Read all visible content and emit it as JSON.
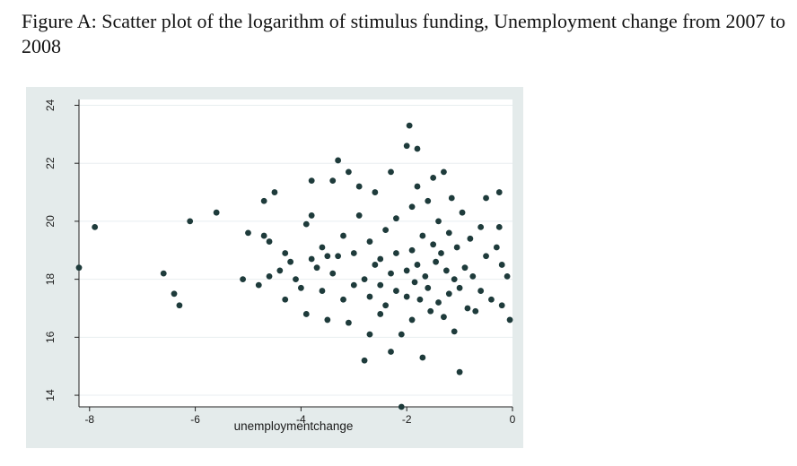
{
  "caption": "Figure A:  Scatter plot of the logarithm of stimulus funding, Unemployment change from 2007 to 2008",
  "chart_data": {
    "type": "scatter",
    "title": "",
    "xlabel": "unemploymentchange",
    "ylabel": "",
    "xlim": [
      -8.2,
      0
    ],
    "ylim": [
      13.6,
      24.2
    ],
    "x_ticks": [
      -8,
      -6,
      -4,
      -2,
      0
    ],
    "y_ticks": [
      14,
      16,
      18,
      20,
      22,
      24
    ],
    "grid": true,
    "legend": "none",
    "colors": {
      "marker": "#1e3b3b",
      "plot_bg": "#ffffff",
      "frame_bg": "#e4ebeb",
      "grid": "#e8eef0"
    },
    "points": [
      [
        -8.2,
        18.4
      ],
      [
        -7.9,
        19.8
      ],
      [
        -6.6,
        18.2
      ],
      [
        -6.4,
        17.5
      ],
      [
        -6.3,
        17.1
      ],
      [
        -6.1,
        20.0
      ],
      [
        -5.6,
        20.3
      ],
      [
        -5.1,
        18.0
      ],
      [
        -5.0,
        19.6
      ],
      [
        -4.8,
        17.8
      ],
      [
        -4.7,
        19.5
      ],
      [
        -4.7,
        20.7
      ],
      [
        -4.6,
        19.3
      ],
      [
        -4.5,
        21.0
      ],
      [
        -4.6,
        18.1
      ],
      [
        -4.4,
        18.3
      ],
      [
        -4.3,
        17.3
      ],
      [
        -4.3,
        18.9
      ],
      [
        -4.2,
        18.6
      ],
      [
        -4.1,
        18.0
      ],
      [
        -4.0,
        17.7
      ],
      [
        -3.9,
        19.9
      ],
      [
        -3.9,
        16.8
      ],
      [
        -3.8,
        18.7
      ],
      [
        -3.8,
        20.2
      ],
      [
        -3.8,
        21.4
      ],
      [
        -3.7,
        18.4
      ],
      [
        -3.6,
        17.6
      ],
      [
        -3.6,
        19.1
      ],
      [
        -3.5,
        18.8
      ],
      [
        -3.5,
        16.6
      ],
      [
        -3.4,
        18.2
      ],
      [
        -3.4,
        21.4
      ],
      [
        -3.3,
        22.1
      ],
      [
        -3.3,
        18.8
      ],
      [
        -3.2,
        17.3
      ],
      [
        -3.2,
        19.5
      ],
      [
        -3.1,
        21.7
      ],
      [
        -3.1,
        16.5
      ],
      [
        -3.0,
        18.9
      ],
      [
        -3.0,
        17.8
      ],
      [
        -2.9,
        20.2
      ],
      [
        -2.9,
        21.2
      ],
      [
        -2.8,
        18.0
      ],
      [
        -2.8,
        15.2
      ],
      [
        -2.7,
        17.4
      ],
      [
        -2.7,
        19.3
      ],
      [
        -2.7,
        16.1
      ],
      [
        -2.6,
        18.5
      ],
      [
        -2.6,
        21.0
      ],
      [
        -2.5,
        17.8
      ],
      [
        -2.5,
        18.7
      ],
      [
        -2.5,
        16.8
      ],
      [
        -2.4,
        19.7
      ],
      [
        -2.4,
        17.1
      ],
      [
        -2.3,
        21.7
      ],
      [
        -2.3,
        18.2
      ],
      [
        -2.3,
        15.5
      ],
      [
        -2.2,
        17.6
      ],
      [
        -2.2,
        18.9
      ],
      [
        -2.2,
        20.1
      ],
      [
        -2.1,
        16.1
      ],
      [
        -2.1,
        13.6
      ],
      [
        -2.0,
        18.3
      ],
      [
        -2.0,
        22.6
      ],
      [
        -2.0,
        17.4
      ],
      [
        -1.95,
        23.3
      ],
      [
        -1.9,
        20.5
      ],
      [
        -1.9,
        19.0
      ],
      [
        -1.9,
        16.6
      ],
      [
        -1.85,
        17.9
      ],
      [
        -1.8,
        18.5
      ],
      [
        -1.8,
        21.2
      ],
      [
        -1.8,
        22.5
      ],
      [
        -1.75,
        17.3
      ],
      [
        -1.7,
        19.5
      ],
      [
        -1.7,
        15.3
      ],
      [
        -1.65,
        18.1
      ],
      [
        -1.6,
        20.7
      ],
      [
        -1.6,
        17.7
      ],
      [
        -1.55,
        16.9
      ],
      [
        -1.5,
        19.2
      ],
      [
        -1.5,
        21.5
      ],
      [
        -1.45,
        18.6
      ],
      [
        -1.4,
        17.2
      ],
      [
        -1.4,
        20.0
      ],
      [
        -1.35,
        18.9
      ],
      [
        -1.3,
        16.7
      ],
      [
        -1.3,
        21.7
      ],
      [
        -1.25,
        18.3
      ],
      [
        -1.2,
        19.6
      ],
      [
        -1.2,
        17.5
      ],
      [
        -1.15,
        20.8
      ],
      [
        -1.1,
        18.0
      ],
      [
        -1.1,
        16.2
      ],
      [
        -1.05,
        19.1
      ],
      [
        -1.0,
        17.7
      ],
      [
        -1.0,
        14.8
      ],
      [
        -0.95,
        20.3
      ],
      [
        -0.9,
        18.4
      ],
      [
        -0.85,
        17.0
      ],
      [
        -0.8,
        19.4
      ],
      [
        -0.75,
        18.1
      ],
      [
        -0.7,
        16.9
      ],
      [
        -0.6,
        19.8
      ],
      [
        -0.6,
        17.6
      ],
      [
        -0.5,
        20.8
      ],
      [
        -0.5,
        18.8
      ],
      [
        -0.4,
        17.3
      ],
      [
        -0.3,
        19.1
      ],
      [
        -0.25,
        21.0
      ],
      [
        -0.25,
        19.8
      ],
      [
        -0.2,
        18.5
      ],
      [
        -0.2,
        17.1
      ],
      [
        -0.1,
        18.1
      ],
      [
        -0.05,
        16.6
      ]
    ]
  }
}
